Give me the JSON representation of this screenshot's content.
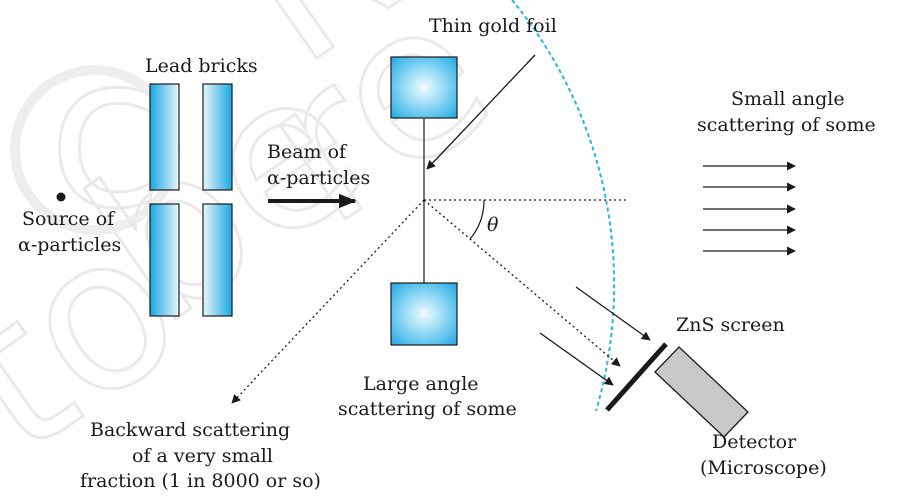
{
  "labels": {
    "lead_bricks": "Lead bricks",
    "thin_gold_foil": "Thin gold foil",
    "small_angle_1": "Small angle",
    "small_angle_2": "scattering of some",
    "beam_1": "Beam of",
    "beam_2": "α-particles",
    "source_1": "Source of",
    "source_2": "α-particles",
    "theta": "θ",
    "zns_screen": "ZnS screen",
    "large_angle_1": "Large angle",
    "large_angle_2": "scattering of some",
    "backward_1": "Backward scattering",
    "backward_2": "of a very small",
    "backward_3": "fraction (1 in 8000 or so)",
    "detector_1": "Detector",
    "detector_2": "(Microscope)"
  },
  "watermark": {
    "text": "© NCERT not to be republished"
  },
  "colors": {
    "foil_gradient_edge": "#1aa6e0",
    "foil_gradient_center": "#e9f8fe",
    "dashed_circle": "#2bb3e6",
    "detector_fill": "#c8c8c8",
    "ink": "#1a1a1a",
    "watermark": "#e8e8e8"
  }
}
